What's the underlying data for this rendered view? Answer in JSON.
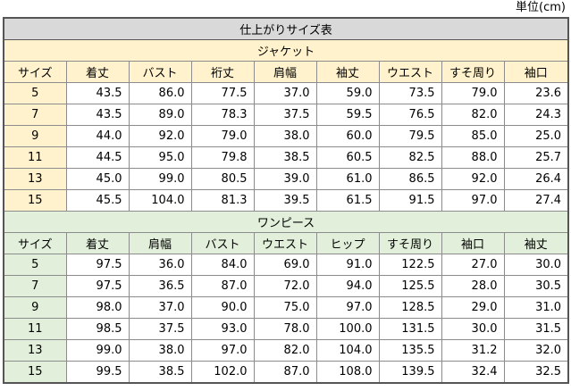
{
  "unit_label": "単位(cm)",
  "title": "仕上がりサイズ表",
  "jacket": {
    "label": "ジャケット",
    "headers": [
      "サイズ",
      "着丈",
      "バスト",
      "裄丈",
      "肩幅",
      "袖丈",
      "ウエスト",
      "すそ周り",
      "袖口"
    ],
    "rows": [
      [
        "5",
        "43.5",
        "86.0",
        "77.5",
        "37.0",
        "59.0",
        "73.5",
        "79.0",
        "23.6"
      ],
      [
        "7",
        "43.5",
        "89.0",
        "78.3",
        "37.5",
        "59.5",
        "76.5",
        "82.0",
        "24.3"
      ],
      [
        "9",
        "44.0",
        "92.0",
        "79.0",
        "38.0",
        "60.0",
        "79.5",
        "85.0",
        "25.0"
      ],
      [
        "11",
        "44.5",
        "95.0",
        "79.8",
        "38.5",
        "60.5",
        "82.5",
        "88.0",
        "25.7"
      ],
      [
        "13",
        "45.0",
        "99.0",
        "80.5",
        "39.0",
        "61.0",
        "86.5",
        "92.0",
        "26.4"
      ],
      [
        "15",
        "45.5",
        "104.0",
        "81.3",
        "39.5",
        "61.5",
        "91.5",
        "97.0",
        "27.4"
      ]
    ]
  },
  "dress": {
    "label": "ワンピース",
    "headers": [
      "サイズ",
      "着丈",
      "肩幅",
      "バスト",
      "ウエスト",
      "ヒップ",
      "すそ周り",
      "袖口",
      "袖丈"
    ],
    "rows": [
      [
        "5",
        "97.5",
        "36.0",
        "84.0",
        "69.0",
        "91.0",
        "122.5",
        "27.0",
        "30.0"
      ],
      [
        "7",
        "97.5",
        "36.5",
        "87.0",
        "72.0",
        "94.0",
        "125.5",
        "28.0",
        "30.5"
      ],
      [
        "9",
        "98.0",
        "37.0",
        "90.0",
        "75.0",
        "97.0",
        "128.5",
        "29.0",
        "31.0"
      ],
      [
        "11",
        "98.5",
        "37.5",
        "93.0",
        "78.0",
        "100.0",
        "131.5",
        "30.0",
        "31.5"
      ],
      [
        "13",
        "99.0",
        "38.0",
        "97.0",
        "82.0",
        "104.0",
        "135.5",
        "31.2",
        "32.0"
      ],
      [
        "15",
        "99.5",
        "38.5",
        "102.0",
        "87.0",
        "108.0",
        "139.5",
        "32.4",
        "32.5"
      ]
    ]
  },
  "colors": {
    "title_bg": "#d9d9d9",
    "jacket_bg": "#fff2cc",
    "dress_bg": "#e2efda",
    "grid": "#8c8c8c"
  }
}
